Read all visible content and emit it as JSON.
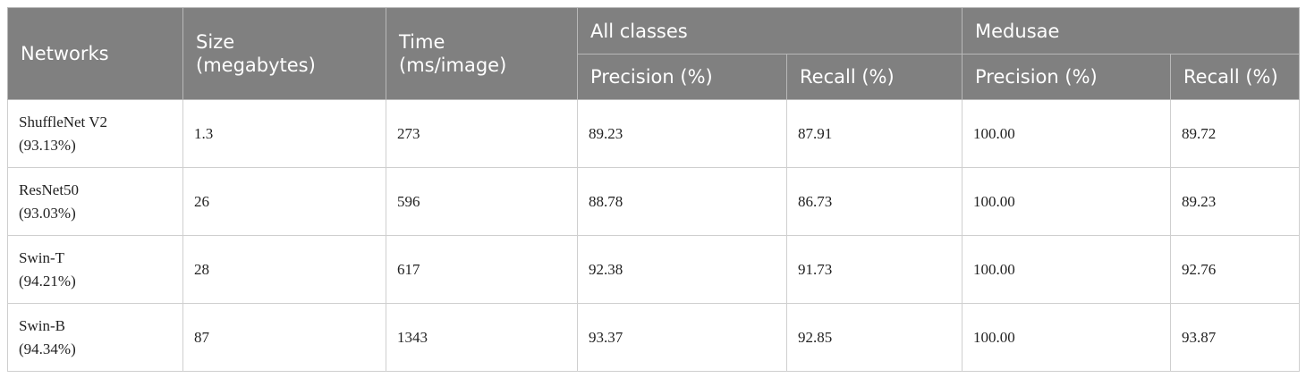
{
  "table": {
    "header": {
      "networks": "Networks",
      "size": [
        "Size",
        "(megabytes)"
      ],
      "time": [
        "Time",
        "(ms/image)"
      ],
      "groups": [
        "All classes",
        "Medusae"
      ],
      "sub": [
        "Precision (%)",
        "Recall (%)",
        "Precision (%)",
        "Recall (%)"
      ]
    },
    "rows": [
      {
        "network": [
          "ShuffleNet V2",
          "(93.13%)"
        ],
        "cells": [
          "1.3",
          "273",
          "89.23",
          "87.91",
          "100.00",
          "89.72"
        ]
      },
      {
        "network": [
          "ResNet50",
          "(93.03%)"
        ],
        "cells": [
          "26",
          "596",
          "88.78",
          "86.73",
          "100.00",
          "89.23"
        ]
      },
      {
        "network": [
          "Swin-T",
          "(94.21%)"
        ],
        "cells": [
          "28",
          "617",
          "92.38",
          "91.73",
          "100.00",
          "92.76"
        ]
      },
      {
        "network": [
          "Swin-B",
          "(94.34%)"
        ],
        "cells": [
          "87",
          "1343",
          "93.37",
          "92.85",
          "100.00",
          "93.87"
        ]
      }
    ]
  }
}
